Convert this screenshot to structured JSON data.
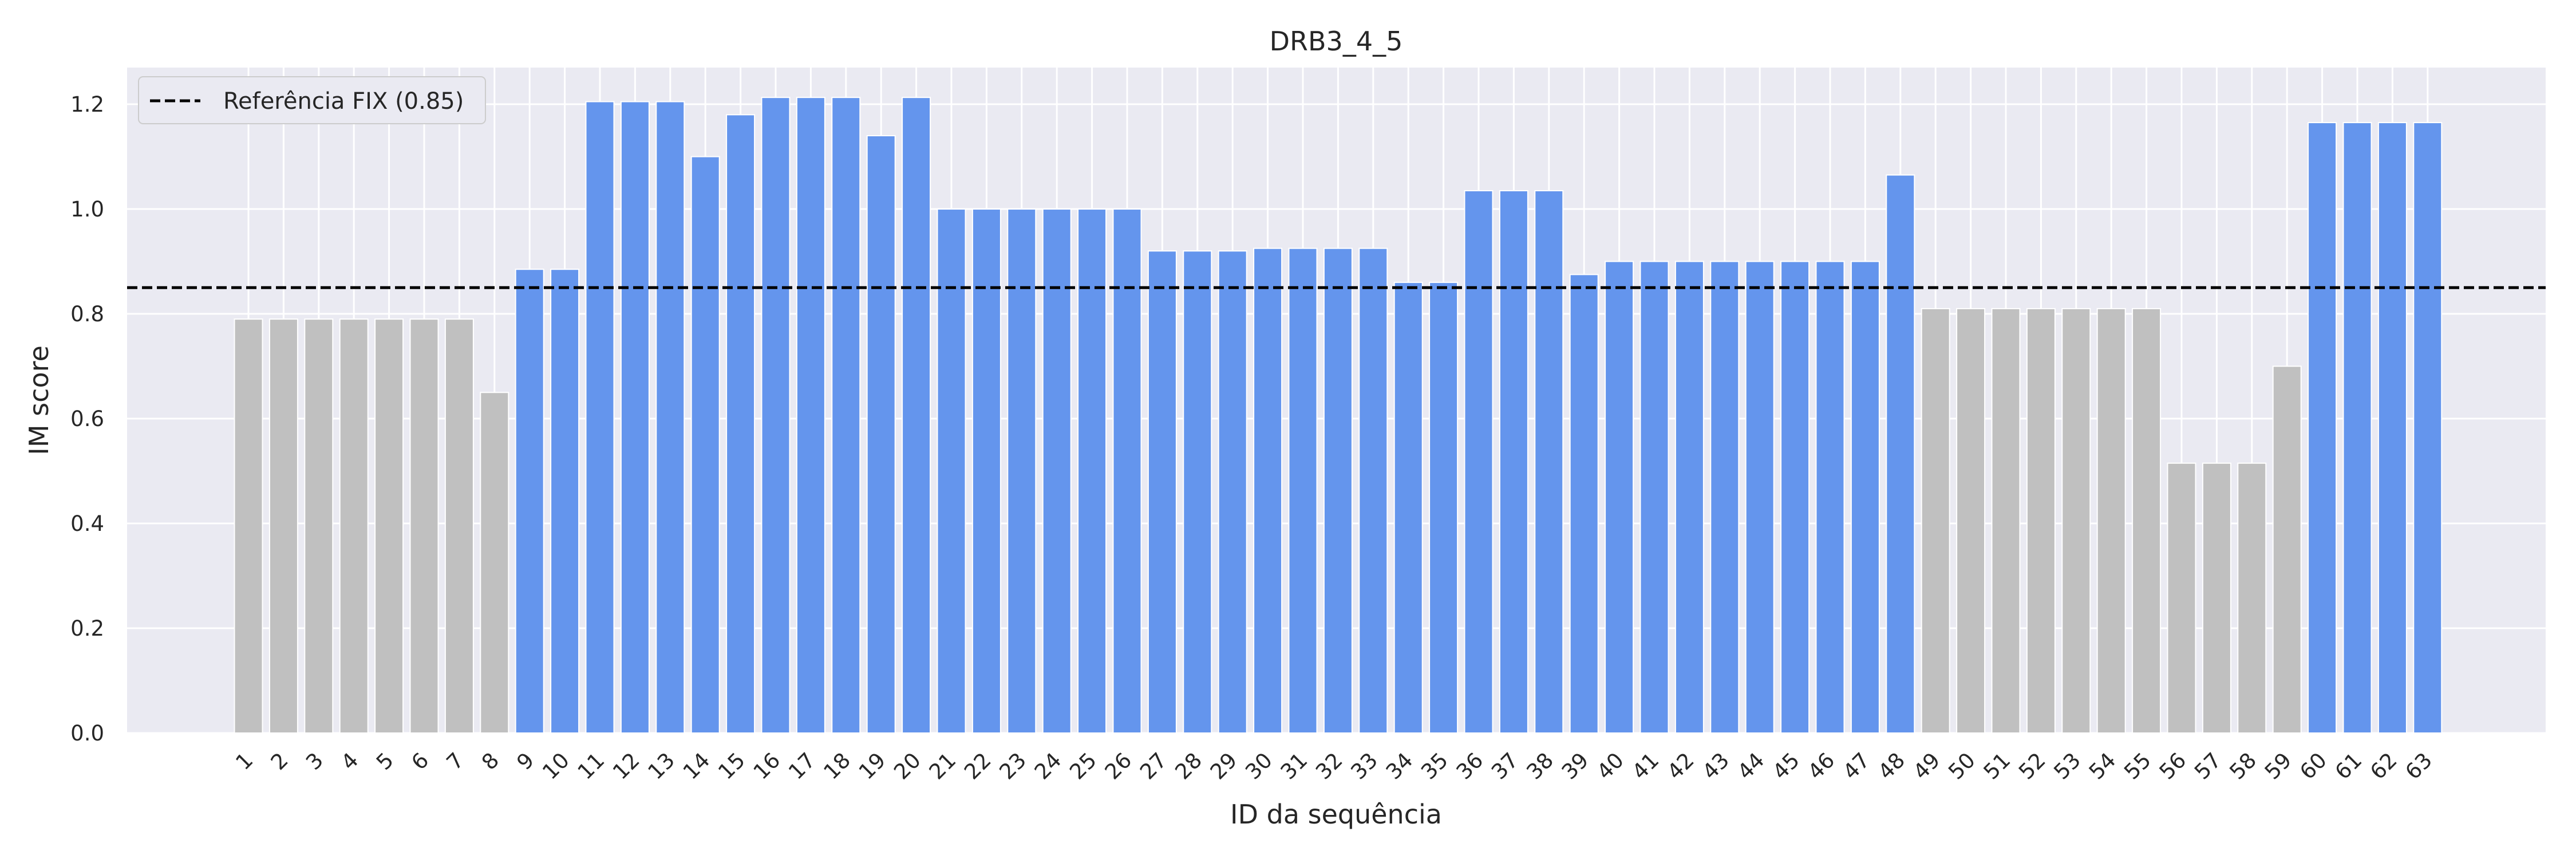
{
  "chart_data": {
    "type": "bar",
    "title": "DRB3_4_5",
    "xlabel": "ID da sequência",
    "ylabel": "IM score",
    "ylim": [
      0,
      1.27
    ],
    "yticks": [
      "0.0",
      "0.2",
      "0.4",
      "0.6",
      "0.8",
      "1.0",
      "1.2"
    ],
    "grid": true,
    "legend_position": "top-left",
    "reference_line": {
      "value": 0.85,
      "label": "Referência FIX (0.85)",
      "color": "#000000",
      "style": "dashed"
    },
    "colors": {
      "above": "#6495ed",
      "below": "#c0c0c0",
      "plot_bg": "#eaeaf2",
      "grid": "#ffffff"
    },
    "categories": [
      "1",
      "2",
      "3",
      "4",
      "5",
      "6",
      "7",
      "8",
      "9",
      "10",
      "11",
      "12",
      "13",
      "14",
      "15",
      "16",
      "17",
      "18",
      "19",
      "20",
      "21",
      "22",
      "23",
      "24",
      "25",
      "26",
      "27",
      "28",
      "29",
      "30",
      "31",
      "32",
      "33",
      "34",
      "35",
      "36",
      "37",
      "38",
      "39",
      "40",
      "41",
      "42",
      "43",
      "44",
      "45",
      "46",
      "47",
      "48",
      "49",
      "50",
      "51",
      "52",
      "53",
      "54",
      "55",
      "56",
      "57",
      "58",
      "59",
      "60",
      "61",
      "62",
      "63"
    ],
    "values": [
      0.79,
      0.79,
      0.79,
      0.79,
      0.79,
      0.79,
      0.79,
      0.65,
      0.885,
      0.885,
      1.205,
      1.205,
      1.205,
      1.1,
      1.18,
      1.213,
      1.213,
      1.213,
      1.14,
      1.213,
      1.0,
      1.0,
      1.0,
      1.0,
      1.0,
      1.0,
      0.92,
      0.92,
      0.92,
      0.925,
      0.925,
      0.925,
      0.925,
      0.86,
      0.86,
      1.035,
      1.035,
      1.035,
      0.875,
      0.9,
      0.9,
      0.9,
      0.9,
      0.9,
      0.9,
      0.9,
      0.9,
      1.065,
      0.81,
      0.81,
      0.81,
      0.81,
      0.81,
      0.81,
      0.81,
      0.515,
      0.515,
      0.515,
      0.7,
      1.165,
      1.165,
      1.165,
      1.165
    ]
  }
}
